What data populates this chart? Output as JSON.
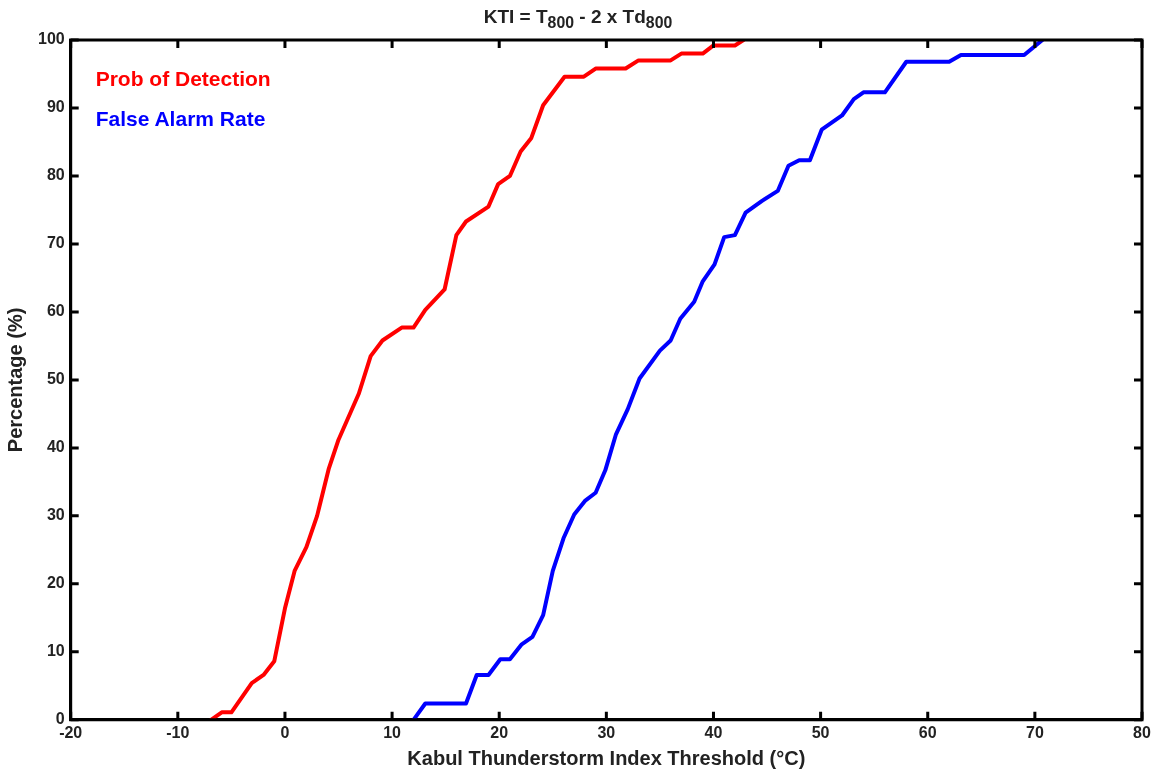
{
  "chart_data": {
    "type": "line",
    "title": "KTI = T$_{800}$ - 2 x Td$_{800}$",
    "xlabel": "Kabul Thunderstorm Index Threshold (°C)",
    "ylabel": "Percentage (%)",
    "xlim": [
      -20,
      80
    ],
    "xticks": [
      -20,
      -10,
      0,
      10,
      20,
      30,
      40,
      50,
      60,
      70,
      80
    ],
    "ylim": [
      0,
      100
    ],
    "yticks": [
      0,
      10,
      20,
      30,
      40,
      50,
      60,
      70,
      80,
      90,
      100
    ],
    "grid": false,
    "legend": "top left",
    "marker": "none",
    "line_style": "solid",
    "series": [
      {
        "name": "Prob of Detection",
        "color": "#ff0000",
        "x": [
          -6.9,
          -5.9,
          -5,
          -3.1,
          -2,
          -1,
          0,
          0.9,
          2,
          3,
          4.1,
          5,
          6.9,
          8,
          9.1,
          10.9,
          12,
          13.1,
          14.9,
          16,
          16.9,
          19,
          19.9,
          21,
          22,
          23,
          24.1,
          26.1,
          27.9,
          29,
          31.8,
          33,
          36,
          37,
          39,
          40,
          42,
          42.8
        ],
        "values": [
          0,
          1.1,
          1.1,
          5.4,
          6.6,
          8.6,
          16.4,
          21.9,
          25.4,
          30,
          37,
          41.2,
          48,
          53.5,
          55.8,
          57.7,
          57.7,
          60.3,
          63.3,
          71.3,
          73.3,
          75.5,
          78.8,
          80,
          83.6,
          85.6,
          90.4,
          94.6,
          94.6,
          95.8,
          95.8,
          97,
          97,
          98,
          98,
          99.2,
          99.2,
          100
        ]
      },
      {
        "name": "False Alarm Rate",
        "color": "#0000ff",
        "x": [
          12,
          13.1,
          16.9,
          17.9,
          19,
          20.1,
          21,
          22.1,
          23.1,
          24.1,
          25,
          26,
          27,
          28,
          29,
          29.9,
          30.9,
          32,
          33.1,
          35,
          36,
          36.9,
          38.2,
          39,
          40.1,
          41,
          42,
          43,
          44.5,
          46,
          47,
          48,
          49,
          50.1,
          52,
          53.1,
          54,
          56,
          58,
          62,
          63.1,
          69,
          70.7
        ],
        "values": [
          0,
          2.4,
          2.4,
          6.6,
          6.6,
          8.9,
          8.9,
          11.1,
          12.2,
          15.4,
          21.9,
          26.7,
          30.2,
          32.2,
          33.4,
          36.7,
          42,
          45.7,
          50.2,
          54.3,
          55.8,
          59,
          61.5,
          64.5,
          67,
          71,
          71.3,
          74.6,
          76.3,
          77.8,
          81.5,
          82.3,
          82.3,
          86.8,
          88.9,
          91.3,
          92.3,
          92.3,
          96.8,
          96.8,
          97.8,
          97.8,
          100
        ]
      }
    ]
  }
}
